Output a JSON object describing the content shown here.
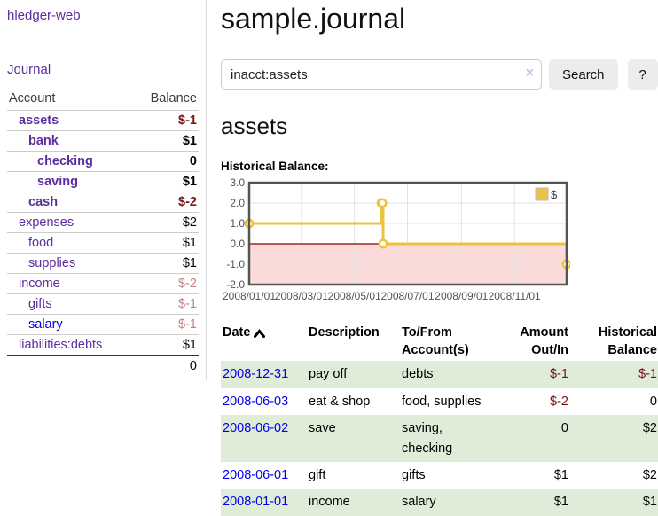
{
  "colors": {
    "accent_purple": "#5b2d9e",
    "link_blue": "#0000ee",
    "negative_strong": "#7d1212",
    "negative_soft": "#c08484",
    "row_green": "#dfecd8",
    "chart_line": "#edc240",
    "chart_marker_fill": "#ffffff",
    "chart_negative_fill": "#fbdada",
    "chart_zero_line": "#8b0000",
    "chart_grid": "#e2e2e2",
    "chart_border": "#545454",
    "chart_tick_text": "#545454"
  },
  "sidebar": {
    "brand_label": "hledger-web",
    "journal_label": "Journal",
    "accounts": {
      "header_account": "Account",
      "header_balance": "Balance",
      "rows": [
        {
          "name": "assets",
          "level": 1,
          "emph": true,
          "balance": "$-1",
          "val_class": "neg-strong",
          "link_class": ""
        },
        {
          "name": "bank",
          "level": 2,
          "emph": true,
          "balance": "$1",
          "val_class": "",
          "link_class": ""
        },
        {
          "name": "checking",
          "level": 3,
          "emph": true,
          "balance": "0",
          "val_class": "",
          "link_class": ""
        },
        {
          "name": "saving",
          "level": 3,
          "emph": true,
          "balance": "$1",
          "val_class": "",
          "link_class": ""
        },
        {
          "name": "cash",
          "level": 2,
          "emph": true,
          "balance": "$-2",
          "val_class": "neg-strong",
          "link_class": ""
        },
        {
          "name": "expenses",
          "level": 1,
          "emph": false,
          "balance": "$2",
          "val_class": "",
          "link_class": ""
        },
        {
          "name": "food",
          "level": 2,
          "emph": false,
          "balance": "$1",
          "val_class": "",
          "link_class": ""
        },
        {
          "name": "supplies",
          "level": 2,
          "emph": false,
          "balance": "$1",
          "val_class": "",
          "link_class": ""
        },
        {
          "name": "income",
          "level": 1,
          "emph": false,
          "balance": "$-2",
          "val_class": "neg-soft",
          "link_class": ""
        },
        {
          "name": "gifts",
          "level": 2,
          "emph": false,
          "balance": "$-1",
          "val_class": "neg-soft",
          "link_class": ""
        },
        {
          "name": "salary",
          "level": 2,
          "emph": false,
          "balance": "$-1",
          "val_class": "neg-soft",
          "link_class": "blue"
        },
        {
          "name": "liabilities:debts",
          "level": 1,
          "emph": false,
          "balance": "$1",
          "val_class": "",
          "link_class": ""
        }
      ],
      "total": "0"
    }
  },
  "header": {
    "title": "sample.journal"
  },
  "search": {
    "value": "inacct:assets",
    "clear_icon": "×",
    "button_label": "Search",
    "help_label": "?"
  },
  "account_page": {
    "title": "assets",
    "chart_label": "Historical Balance:"
  },
  "chart_data": {
    "type": "line",
    "step": true,
    "series": [
      {
        "name": "$",
        "points": [
          [
            "2008-01-01",
            1
          ],
          [
            "2008-06-01",
            2
          ],
          [
            "2008-06-02",
            2
          ],
          [
            "2008-06-03",
            0
          ],
          [
            "2008-12-31",
            -1
          ]
        ]
      }
    ],
    "x_domain": [
      "2008-01-01",
      "2008-12-31"
    ],
    "x_ticks": [
      {
        "date": "2008-01-01",
        "label": "2008/01/01"
      },
      {
        "date": "2008-03-01",
        "label": "2008/03/01"
      },
      {
        "date": "2008-05-01",
        "label": "2008/05/01"
      },
      {
        "date": "2008-07-01",
        "label": "2008/07/01"
      },
      {
        "date": "2008-09-01",
        "label": "2008/09/01"
      },
      {
        "date": "2008-11-01",
        "label": "2008/11/01"
      }
    ],
    "y_ticks": [
      {
        "value": 3,
        "label": "3.0"
      },
      {
        "value": 2,
        "label": "2.0"
      },
      {
        "value": 1,
        "label": "1.0"
      },
      {
        "value": 0,
        "label": "0.0"
      },
      {
        "value": -1,
        "label": "-1.0"
      },
      {
        "value": -2,
        "label": "-2.0"
      }
    ],
    "ylim": [
      -2,
      3
    ],
    "grid": true,
    "legend_position": "top-right",
    "legend_label": "$"
  },
  "register": {
    "headers": {
      "date": "Date",
      "description": "Description",
      "accounts": "To/From Account(s)",
      "amount": "Amount Out/In",
      "balance": "Historical Balance"
    },
    "rows": [
      {
        "date": "2008-12-31",
        "description": "pay off",
        "accounts": "debts",
        "amount": "$-1",
        "amount_neg": true,
        "balance": "$-1",
        "balance_neg": true
      },
      {
        "date": "2008-06-03",
        "description": "eat & shop",
        "accounts": "food, supplies",
        "amount": "$-2",
        "amount_neg": true,
        "balance": "0",
        "balance_neg": false
      },
      {
        "date": "2008-06-02",
        "description": "save",
        "accounts": "saving, checking",
        "amount": "0",
        "amount_neg": false,
        "balance": "$2",
        "balance_neg": false
      },
      {
        "date": "2008-06-01",
        "description": "gift",
        "accounts": "gifts",
        "amount": "$1",
        "amount_neg": false,
        "balance": "$2",
        "balance_neg": false
      },
      {
        "date": "2008-01-01",
        "description": "income",
        "accounts": "salary",
        "amount": "$1",
        "amount_neg": false,
        "balance": "$1",
        "balance_neg": false
      }
    ]
  }
}
